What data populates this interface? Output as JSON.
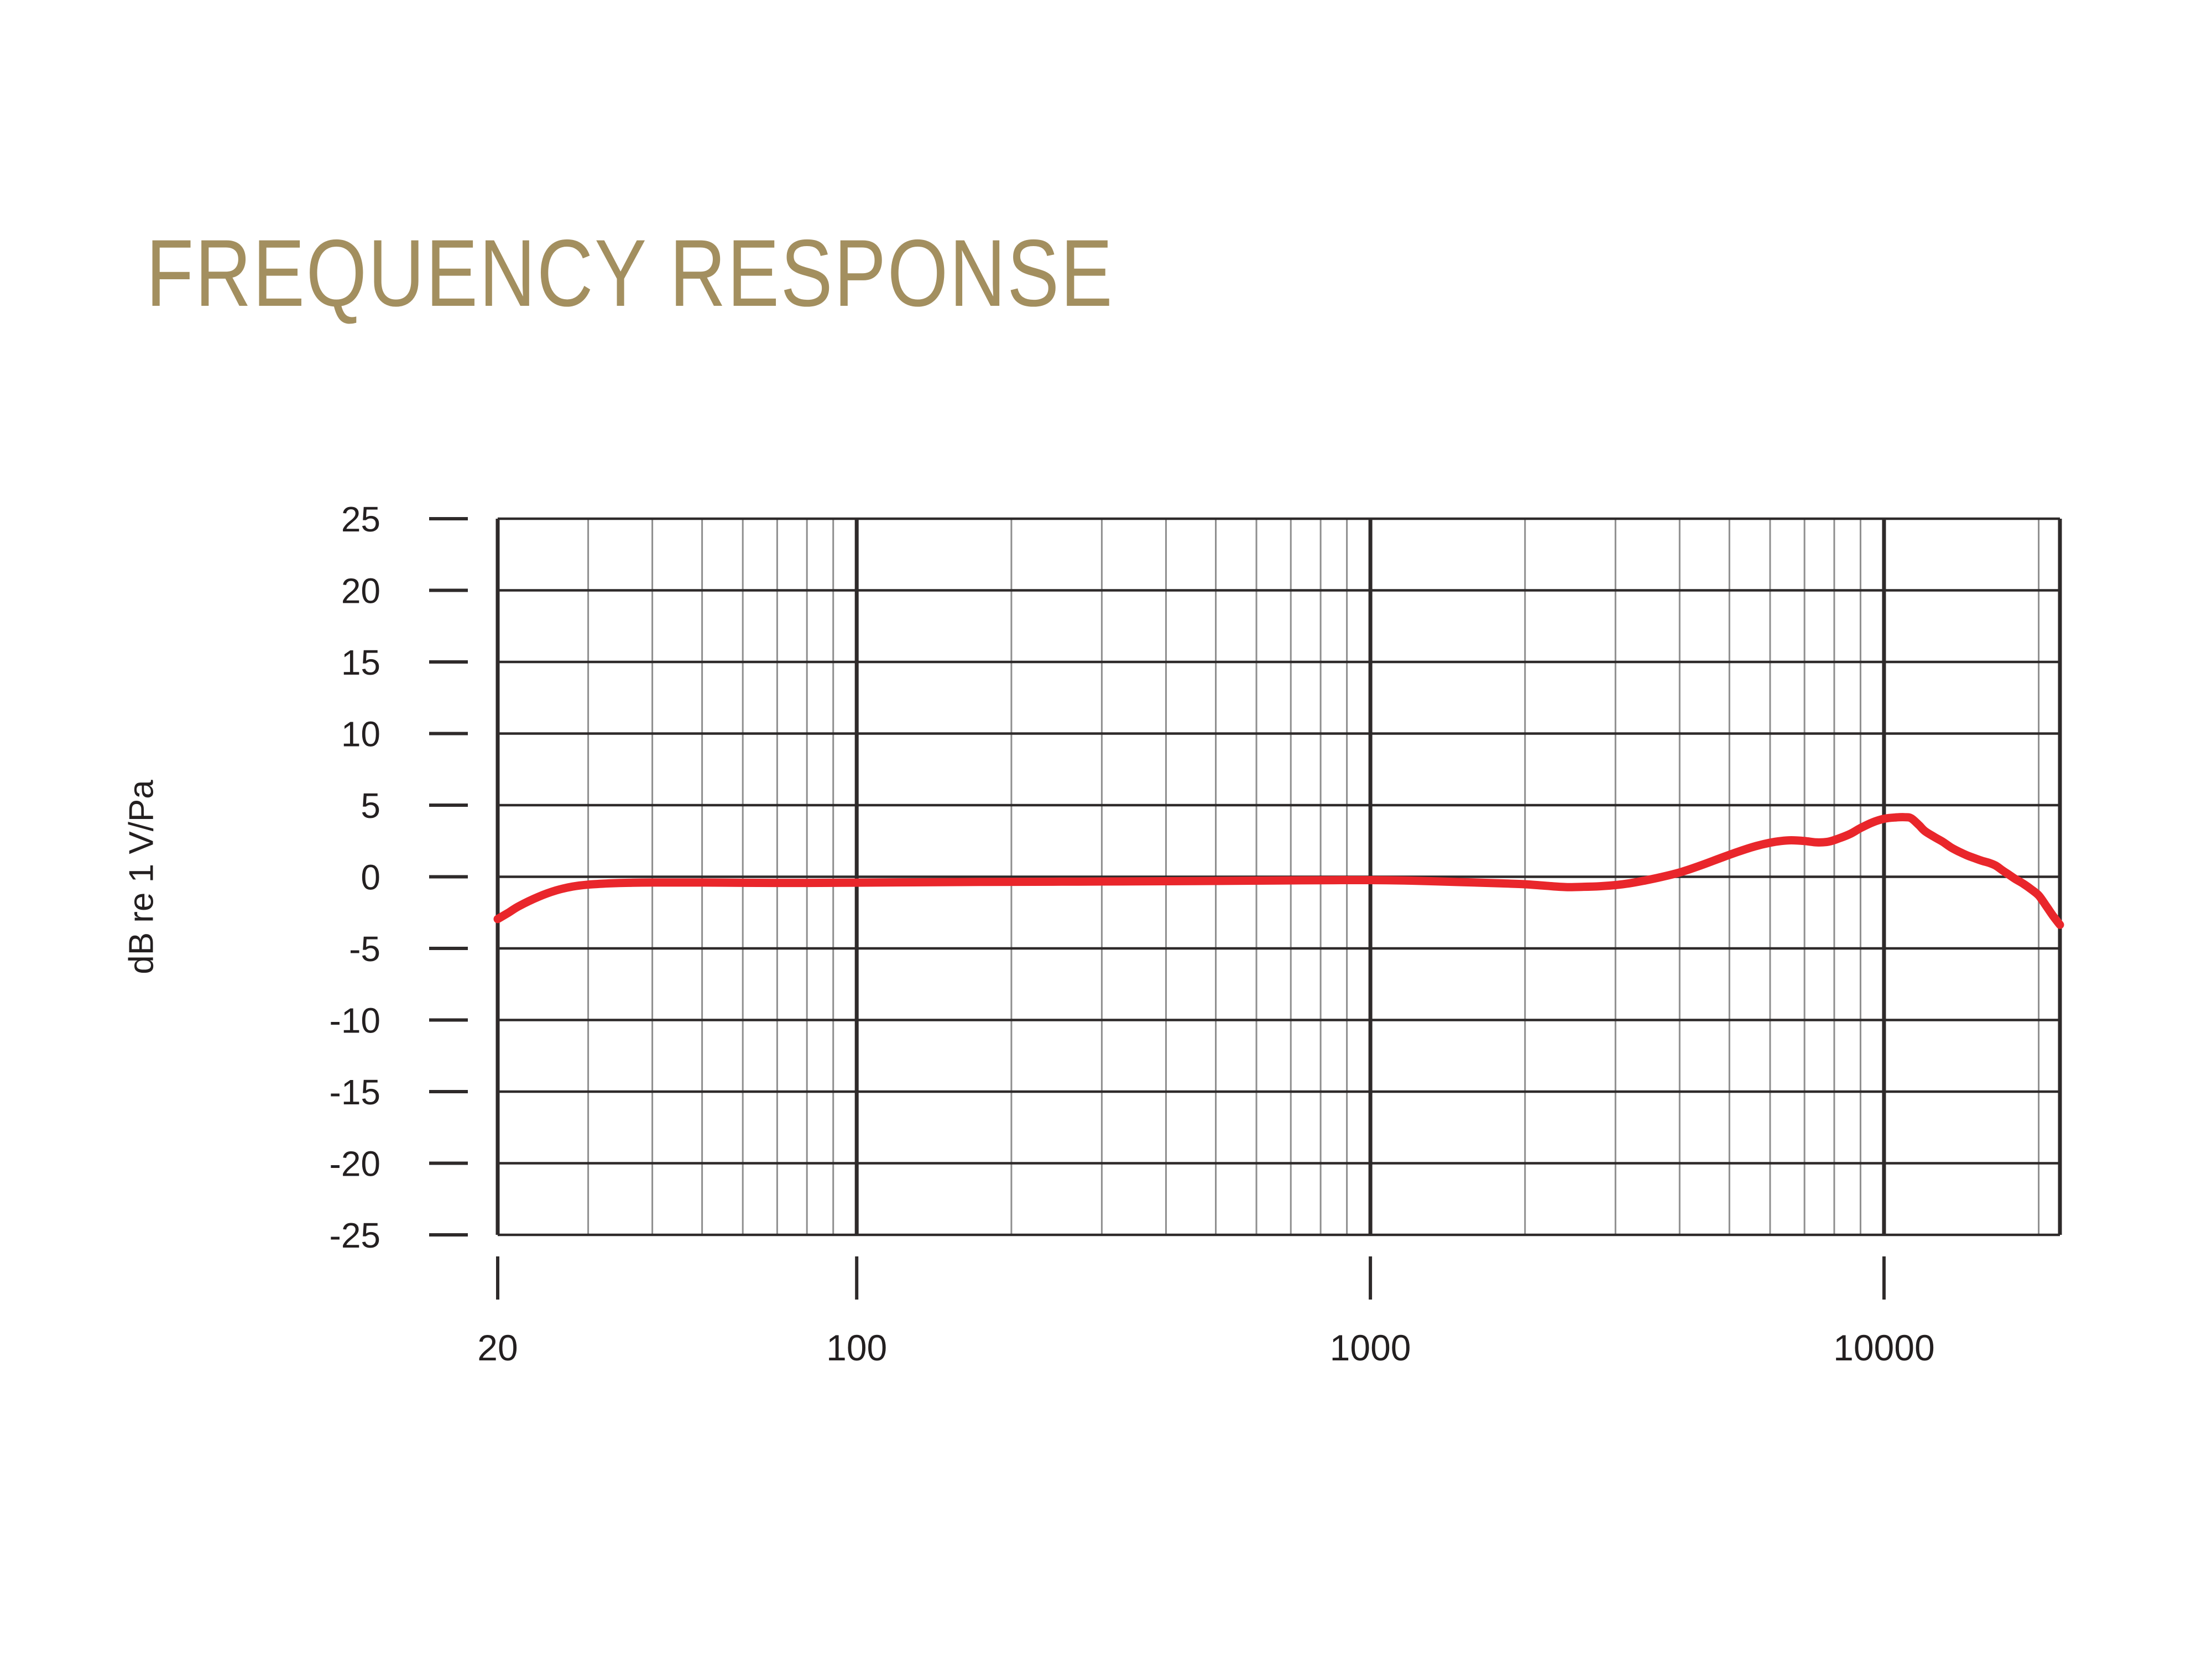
{
  "page": {
    "title": "FREQUENCY RESPONSE"
  },
  "colors": {
    "background": "#ffffff",
    "title": "#a38f5f",
    "curve": "#e9262b",
    "grid_major": "#2e2a2a",
    "grid_minor": "#8e8e8e",
    "text": "#231f20"
  },
  "chart_data": {
    "type": "line",
    "title": "FREQUENCY RESPONSE",
    "xlabel": "",
    "ylabel": "dB re 1 V/Pa",
    "grid": true,
    "legend": false,
    "x_axis": {
      "scale": "log",
      "min": 20,
      "max": 22000,
      "major_ticks": [
        20,
        100,
        1000,
        10000
      ],
      "tick_labels": [
        "20",
        "100",
        "1000",
        "10000"
      ],
      "minor_gridlines": [
        30,
        40,
        50,
        60,
        70,
        80,
        90,
        200,
        300,
        400,
        500,
        600,
        700,
        800,
        900,
        2000,
        3000,
        4000,
        5000,
        6000,
        7000,
        8000,
        9000,
        20000
      ]
    },
    "y_axis": {
      "label": "dB re 1 V/Pa",
      "min": -25,
      "max": 25,
      "tick_step": 5,
      "ticks": [
        25,
        20,
        15,
        10,
        5,
        0,
        -5,
        -10,
        -15,
        -20,
        -25
      ]
    },
    "series": [
      {
        "name": "frequency response",
        "color": "#e9262b",
        "points": [
          [
            20,
            -2.95
          ],
          [
            21,
            -2.5
          ],
          [
            22,
            -2.05
          ],
          [
            24,
            -1.4
          ],
          [
            26,
            -0.95
          ],
          [
            28,
            -0.68
          ],
          [
            30,
            -0.55
          ],
          [
            33,
            -0.46
          ],
          [
            36,
            -0.42
          ],
          [
            40,
            -0.4
          ],
          [
            45,
            -0.4
          ],
          [
            50,
            -0.4
          ],
          [
            60,
            -0.42
          ],
          [
            70,
            -0.43
          ],
          [
            80,
            -0.43
          ],
          [
            90,
            -0.42
          ],
          [
            100,
            -0.41
          ],
          [
            120,
            -0.39
          ],
          [
            150,
            -0.37
          ],
          [
            200,
            -0.35
          ],
          [
            250,
            -0.34
          ],
          [
            300,
            -0.33
          ],
          [
            400,
            -0.31
          ],
          [
            500,
            -0.29
          ],
          [
            650,
            -0.26
          ],
          [
            800,
            -0.24
          ],
          [
            1000,
            -0.23
          ],
          [
            1200,
            -0.27
          ],
          [
            1500,
            -0.37
          ],
          [
            1800,
            -0.46
          ],
          [
            2000,
            -0.52
          ],
          [
            2200,
            -0.63
          ],
          [
            2400,
            -0.72
          ],
          [
            2600,
            -0.7
          ],
          [
            2800,
            -0.66
          ],
          [
            3000,
            -0.58
          ],
          [
            3200,
            -0.45
          ],
          [
            3400,
            -0.28
          ],
          [
            3650,
            -0.05
          ],
          [
            4000,
            0.3
          ],
          [
            4400,
            0.8
          ],
          [
            4800,
            1.3
          ],
          [
            5200,
            1.75
          ],
          [
            5600,
            2.12
          ],
          [
            6000,
            2.38
          ],
          [
            6300,
            2.5
          ],
          [
            6600,
            2.55
          ],
          [
            7000,
            2.5
          ],
          [
            7400,
            2.4
          ],
          [
            7800,
            2.45
          ],
          [
            8200,
            2.7
          ],
          [
            8600,
            3.0
          ],
          [
            9000,
            3.4
          ],
          [
            9500,
            3.8
          ],
          [
            10000,
            4.05
          ],
          [
            10500,
            4.14
          ],
          [
            11000,
            4.16
          ],
          [
            11300,
            4.08
          ],
          [
            11700,
            3.6
          ],
          [
            12000,
            3.2
          ],
          [
            12500,
            2.8
          ],
          [
            13000,
            2.45
          ],
          [
            13500,
            2.05
          ],
          [
            14000,
            1.75
          ],
          [
            14500,
            1.5
          ],
          [
            15000,
            1.3
          ],
          [
            15500,
            1.12
          ],
          [
            16000,
            0.98
          ],
          [
            16500,
            0.78
          ],
          [
            17000,
            0.45
          ],
          [
            17500,
            0.15
          ],
          [
            18000,
            -0.15
          ],
          [
            18700,
            -0.5
          ],
          [
            19300,
            -0.85
          ],
          [
            20000,
            -1.3
          ],
          [
            20700,
            -2.05
          ],
          [
            21300,
            -2.7
          ],
          [
            22000,
            -3.35
          ]
        ]
      }
    ]
  }
}
